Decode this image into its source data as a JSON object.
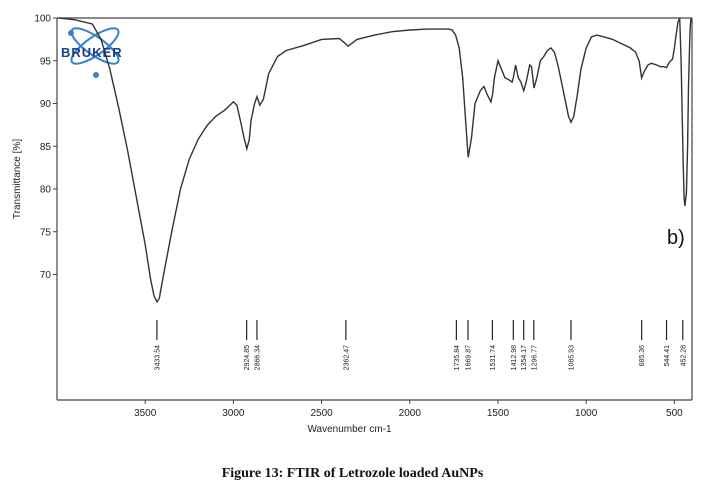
{
  "chart_data": {
    "type": "line",
    "title": "",
    "xlabel": "Wavenumber cm-1",
    "ylabel": "Transmittance [%]",
    "xlim": [
      4000,
      400
    ],
    "ylim": [
      60,
      100
    ],
    "x_reversed": true,
    "xticks": [
      3500,
      3000,
      2500,
      2000,
      1500,
      1000,
      500
    ],
    "yticks": [
      70,
      75,
      80,
      85,
      90,
      95,
      100
    ],
    "grid": false,
    "series": [
      {
        "color": "#333333",
        "x": [
          3990,
          3900,
          3800,
          3750,
          3700,
          3650,
          3600,
          3550,
          3500,
          3470,
          3450,
          3433,
          3420,
          3400,
          3350,
          3300,
          3250,
          3200,
          3150,
          3100,
          3080,
          3050,
          3020,
          3000,
          2980,
          2960,
          2940,
          2924,
          2910,
          2900,
          2880,
          2866,
          2850,
          2830,
          2800,
          2750,
          2700,
          2600,
          2500,
          2400,
          2370,
          2350,
          2330,
          2300,
          2200,
          2100,
          2000,
          1900,
          1800,
          1780,
          1760,
          1740,
          1720,
          1700,
          1680,
          1669,
          1650,
          1630,
          1600,
          1580,
          1560,
          1540,
          1531,
          1520,
          1500,
          1480,
          1460,
          1440,
          1420,
          1413,
          1400,
          1385,
          1370,
          1354,
          1340,
          1320,
          1310,
          1296,
          1280,
          1260,
          1240,
          1220,
          1200,
          1180,
          1160,
          1140,
          1120,
          1100,
          1086,
          1070,
          1050,
          1030,
          1000,
          970,
          940,
          900,
          850,
          800,
          750,
          720,
          700,
          686,
          670,
          650,
          630,
          600,
          580,
          560,
          544,
          530,
          510,
          500,
          490,
          480,
          470,
          462,
          455,
          450,
          445,
          440,
          432,
          425,
          420,
          415,
          410,
          405
        ],
        "values": [
          100,
          99.8,
          99.3,
          97.5,
          94.0,
          89.5,
          84.5,
          79.0,
          73.5,
          69.5,
          67.5,
          66.8,
          67.2,
          69.5,
          75.0,
          80.0,
          83.5,
          85.8,
          87.4,
          88.5,
          88.8,
          89.2,
          89.8,
          90.2,
          89.8,
          88.0,
          86.0,
          84.7,
          85.8,
          88.0,
          90.0,
          90.8,
          89.8,
          90.5,
          93.5,
          95.5,
          96.2,
          96.8,
          97.5,
          97.6,
          97.1,
          96.7,
          97.0,
          97.5,
          98.0,
          98.4,
          98.6,
          98.7,
          98.7,
          98.7,
          98.6,
          98.0,
          96.5,
          93.0,
          87.0,
          83.7,
          86.0,
          90.0,
          91.5,
          92.0,
          91.0,
          90.2,
          91.0,
          93.0,
          95.0,
          94.0,
          93.0,
          92.8,
          92.5,
          93.0,
          94.5,
          93.0,
          92.5,
          91.5,
          92.5,
          94.5,
          94.3,
          91.8,
          93.0,
          95.0,
          95.5,
          96.2,
          96.5,
          96.0,
          94.5,
          92.5,
          90.5,
          88.5,
          87.8,
          88.5,
          91.0,
          94.0,
          96.5,
          97.8,
          98.0,
          97.8,
          97.5,
          97.0,
          96.5,
          96.0,
          95.0,
          93.0,
          93.8,
          94.5,
          94.7,
          94.5,
          94.3,
          94.3,
          94.2,
          94.8,
          95.2,
          96.5,
          98.0,
          99.5,
          100,
          95.0,
          88.0,
          83.0,
          79.0,
          78.0,
          79.5,
          85.0,
          92.0,
          96.0,
          99.0,
          100
        ]
      }
    ],
    "peak_labels": [
      {
        "x": 3433.54,
        "text": "3433.54"
      },
      {
        "x": 2924.85,
        "text": "2924.85"
      },
      {
        "x": 2866.34,
        "text": "2866.34"
      },
      {
        "x": 2362.47,
        "text": "2362.47"
      },
      {
        "x": 1735.84,
        "text": "1735.84"
      },
      {
        "x": 1669.87,
        "text": "1669.87"
      },
      {
        "x": 1531.74,
        "text": "1531.74"
      },
      {
        "x": 1412.98,
        "text": "1412.98"
      },
      {
        "x": 1354.17,
        "text": "1354.17"
      },
      {
        "x": 1296.77,
        "text": "1296.77"
      },
      {
        "x": 1085.93,
        "text": "1085.93"
      },
      {
        "x": 685.36,
        "text": "685.36"
      },
      {
        "x": 544.41,
        "text": "544.41"
      },
      {
        "x": 452.28,
        "text": "452.28"
      }
    ],
    "annotation": "b)",
    "legend": "none"
  },
  "logo": {
    "text": "BRUKER",
    "color": "#1a3f8a",
    "accent": "#3a7fd0"
  },
  "caption": "Figure 13: FTIR of Letrozole loaded AuNPs"
}
